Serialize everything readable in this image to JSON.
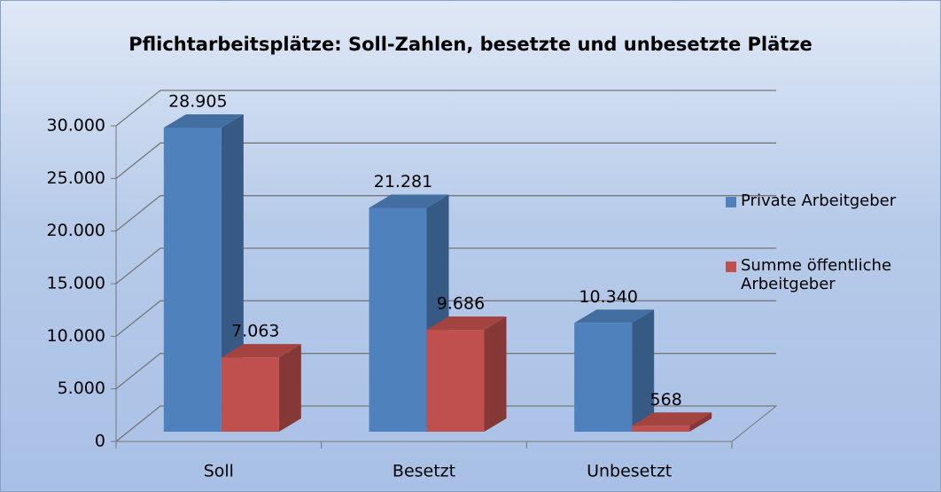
{
  "chart_data": {
    "type": "bar3d",
    "title": "Pflichtarbeitsplätze: Soll-Zahlen, besetzte und unbesetzte Plätze",
    "categories": [
      "Soll",
      "Besetzt",
      "Unbesetzt"
    ],
    "series": [
      {
        "name": "Private Arbeitgeber",
        "color": "#4f81bd",
        "values": [
          28905,
          21281,
          10340
        ],
        "value_labels": [
          "28.905",
          "21.281",
          "10.340"
        ]
      },
      {
        "name": "Summe öffentliche Arbeitgeber",
        "color": "#c0504d",
        "values": [
          7063,
          9686,
          568
        ],
        "value_labels": [
          "7.063",
          "9.686",
          "568"
        ]
      }
    ],
    "ylim": [
      0,
      30000
    ],
    "yticks": [
      0,
      {
        "value": 5000,
        "label": "5.000"
      },
      {
        "value": 10000,
        "label": "10.000"
      },
      {
        "value": 15000,
        "label": "15.000"
      },
      {
        "value": 20000,
        "label": "20.000"
      },
      {
        "value": 25000,
        "label": "25.000"
      },
      {
        "value": 30000,
        "label": "30.000"
      }
    ],
    "grid": true,
    "legend": "right"
  }
}
